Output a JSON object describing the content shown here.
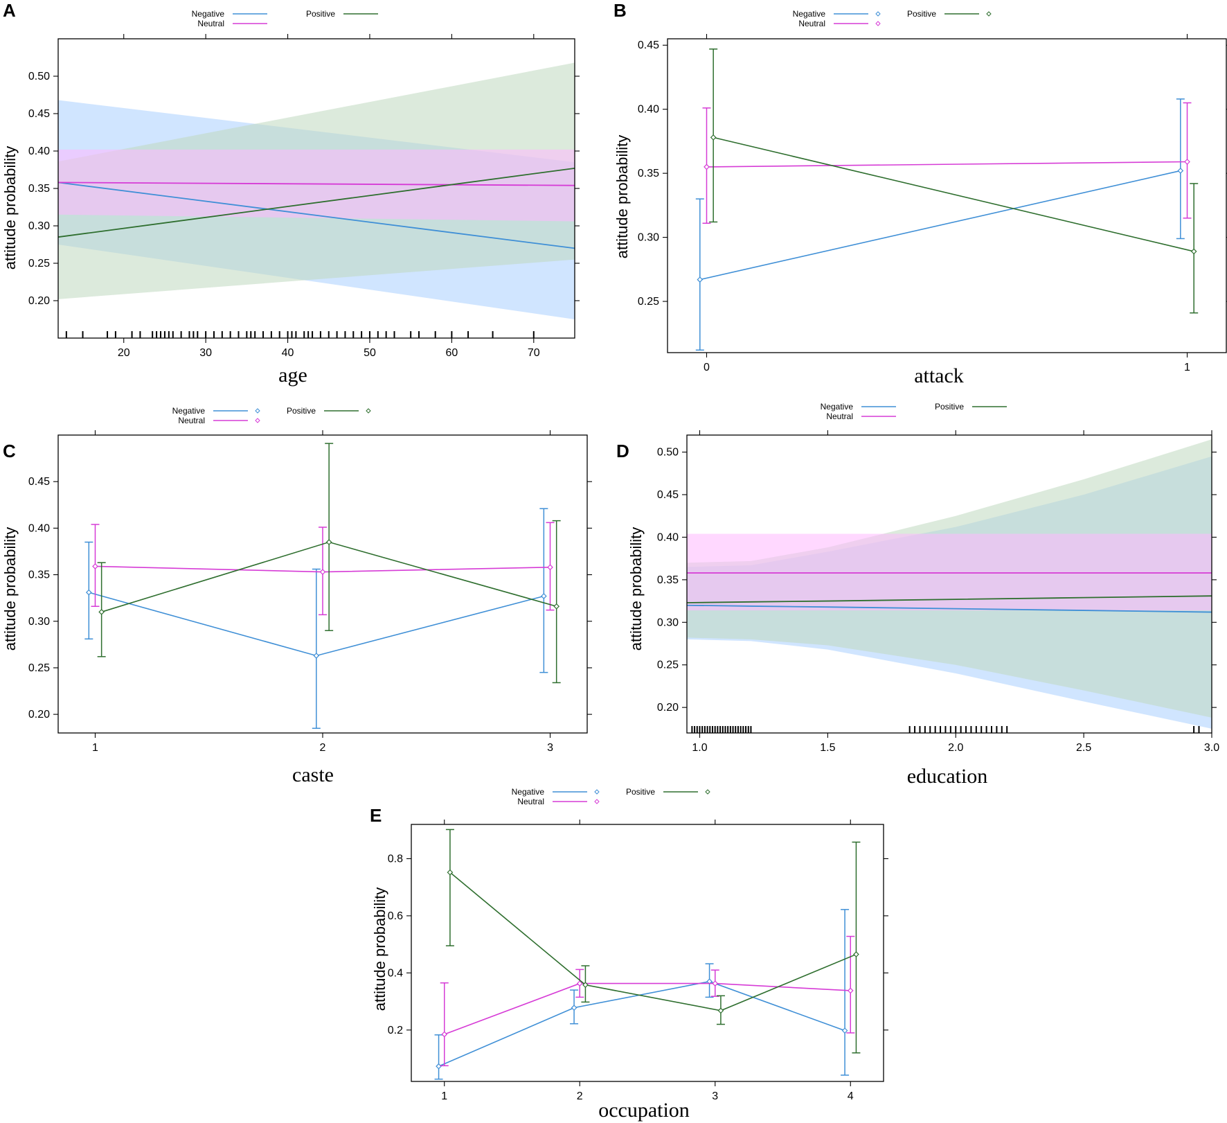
{
  "colors": {
    "Negative": "#3f8fd6",
    "Neutral": "#d63bd6",
    "Positive": "#2e6e2e",
    "NegativeBand": "#a9d0ff",
    "NeutralBand": "#ffb8ff",
    "PositiveBand": "#bfd8bf"
  },
  "legend_labels": {
    "negative": "Negative",
    "neutral": "Neutral",
    "positive": "Positive"
  },
  "ylabel": "attitude probability",
  "chart_data": [
    {
      "panel": "A",
      "type": "line",
      "xlabel": "age",
      "xlim": [
        12,
        75
      ],
      "ylim": [
        0.15,
        0.55
      ],
      "xticks": [
        20,
        30,
        40,
        50,
        60,
        70
      ],
      "yticks": [
        0.2,
        0.25,
        0.3,
        0.35,
        0.4,
        0.45,
        0.5
      ],
      "legend_markers": false,
      "band": true,
      "series": [
        {
          "name": "Negative",
          "x": [
            12,
            75
          ],
          "y": [
            0.358,
            0.27
          ],
          "lower": [
            0.275,
            0.175
          ],
          "upper": [
            0.468,
            0.385
          ]
        },
        {
          "name": "Neutral",
          "x": [
            12,
            75
          ],
          "y": [
            0.358,
            0.354
          ],
          "lower": [
            0.315,
            0.306
          ],
          "upper": [
            0.402,
            0.402
          ]
        },
        {
          "name": "Positive",
          "x": [
            12,
            75
          ],
          "y": [
            0.285,
            0.377
          ],
          "lower": [
            0.202,
            0.255
          ],
          "upper": [
            0.386,
            0.518
          ]
        }
      ],
      "rug": [
        13,
        15,
        18,
        19,
        21,
        22,
        23.5,
        24,
        24.5,
        25,
        25.5,
        26,
        27,
        28,
        28.5,
        29,
        30,
        31,
        32,
        33,
        34,
        35,
        35.5,
        36,
        37,
        38,
        39,
        40,
        40.5,
        41,
        42,
        42.5,
        43,
        44,
        45,
        46,
        47,
        48,
        49,
        50,
        51,
        52,
        53,
        55,
        56,
        58,
        60,
        62,
        65,
        70
      ]
    },
    {
      "panel": "B",
      "type": "line",
      "xlabel": "attack",
      "categories": [
        "0",
        "1"
      ],
      "ylim": [
        0.21,
        0.455
      ],
      "yticks": [
        0.25,
        0.3,
        0.35,
        0.4,
        0.45
      ],
      "legend_markers": true,
      "series": [
        {
          "name": "Negative",
          "values": [
            0.267,
            0.352
          ],
          "lower": [
            0.212,
            0.299
          ],
          "upper": [
            0.33,
            0.408
          ]
        },
        {
          "name": "Neutral",
          "values": [
            0.355,
            0.359
          ],
          "lower": [
            0.311,
            0.315
          ],
          "upper": [
            0.401,
            0.405
          ]
        },
        {
          "name": "Positive",
          "values": [
            0.378,
            0.289
          ],
          "lower": [
            0.312,
            0.241
          ],
          "upper": [
            0.447,
            0.342
          ]
        }
      ]
    },
    {
      "panel": "C",
      "type": "line",
      "xlabel": "caste",
      "categories": [
        "1",
        "2",
        "3"
      ],
      "ylim": [
        0.18,
        0.5
      ],
      "yticks": [
        0.2,
        0.25,
        0.3,
        0.35,
        0.4,
        0.45
      ],
      "legend_markers": true,
      "series": [
        {
          "name": "Negative",
          "values": [
            0.331,
            0.263,
            0.327
          ],
          "lower": [
            0.281,
            0.185,
            0.245
          ],
          "upper": [
            0.385,
            0.356,
            0.421
          ]
        },
        {
          "name": "Neutral",
          "values": [
            0.359,
            0.353,
            0.358
          ],
          "lower": [
            0.316,
            0.307,
            0.312
          ],
          "upper": [
            0.404,
            0.401,
            0.406
          ]
        },
        {
          "name": "Positive",
          "values": [
            0.31,
            0.385,
            0.316
          ],
          "lower": [
            0.262,
            0.29,
            0.234
          ],
          "upper": [
            0.363,
            0.491,
            0.408
          ]
        }
      ]
    },
    {
      "panel": "D",
      "type": "line",
      "xlabel": "education",
      "xlim": [
        0.95,
        3.0
      ],
      "ylim": [
        0.17,
        0.52
      ],
      "xticks": [
        1.0,
        1.5,
        2.0,
        2.5,
        3.0
      ],
      "yticks": [
        0.2,
        0.25,
        0.3,
        0.35,
        0.4,
        0.45,
        0.5
      ],
      "legend_markers": false,
      "band": true,
      "series": [
        {
          "name": "Negative",
          "x": [
            0.95,
            1.2,
            1.5,
            2.0,
            2.5,
            3.0
          ],
          "y": [
            0.32,
            0.319,
            0.318,
            0.316,
            0.314,
            0.312
          ],
          "lower": [
            0.28,
            0.278,
            0.268,
            0.24,
            0.207,
            0.175
          ],
          "upper": [
            0.365,
            0.367,
            0.383,
            0.412,
            0.45,
            0.495
          ]
        },
        {
          "name": "Neutral",
          "x": [
            0.95,
            3.0
          ],
          "y": [
            0.358,
            0.358
          ],
          "lower": [
            0.314,
            0.314
          ],
          "upper": [
            0.404,
            0.404
          ]
        },
        {
          "name": "Positive",
          "x": [
            0.95,
            1.2,
            1.5,
            2.0,
            2.5,
            3.0
          ],
          "y": [
            0.323,
            0.324,
            0.325,
            0.327,
            0.329,
            0.331
          ],
          "lower": [
            0.282,
            0.28,
            0.273,
            0.25,
            0.22,
            0.188
          ],
          "upper": [
            0.37,
            0.372,
            0.388,
            0.425,
            0.468,
            0.515
          ]
        }
      ],
      "rug": [
        0.97,
        0.98,
        0.99,
        1.0,
        1.01,
        1.02,
        1.03,
        1.04,
        1.05,
        1.06,
        1.07,
        1.08,
        1.09,
        1.1,
        1.11,
        1.12,
        1.13,
        1.14,
        1.15,
        1.16,
        1.17,
        1.18,
        1.19,
        1.2,
        1.82,
        1.84,
        1.86,
        1.88,
        1.9,
        1.92,
        1.94,
        1.96,
        1.98,
        2.0,
        2.02,
        2.04,
        2.06,
        2.08,
        2.1,
        2.12,
        2.14,
        2.16,
        2.18,
        2.2,
        2.93,
        2.95
      ]
    },
    {
      "panel": "E",
      "type": "line",
      "xlabel": "occupation",
      "categories": [
        "1",
        "2",
        "3",
        "4"
      ],
      "ylim": [
        0.02,
        0.92
      ],
      "yticks": [
        0.2,
        0.4,
        0.6,
        0.8
      ],
      "legend_markers": true,
      "series": [
        {
          "name": "Negative",
          "values": [
            0.073,
            0.278,
            0.37,
            0.198
          ],
          "lower": [
            0.028,
            0.222,
            0.315,
            0.042
          ],
          "upper": [
            0.183,
            0.34,
            0.432,
            0.622
          ]
        },
        {
          "name": "Neutral",
          "values": [
            0.185,
            0.363,
            0.363,
            0.338
          ],
          "lower": [
            0.075,
            0.315,
            0.318,
            0.19
          ],
          "upper": [
            0.365,
            0.412,
            0.41,
            0.528
          ]
        },
        {
          "name": "Positive",
          "values": [
            0.752,
            0.358,
            0.268,
            0.465
          ],
          "lower": [
            0.495,
            0.298,
            0.22,
            0.12
          ],
          "upper": [
            0.902,
            0.425,
            0.32,
            0.858
          ]
        }
      ]
    }
  ]
}
